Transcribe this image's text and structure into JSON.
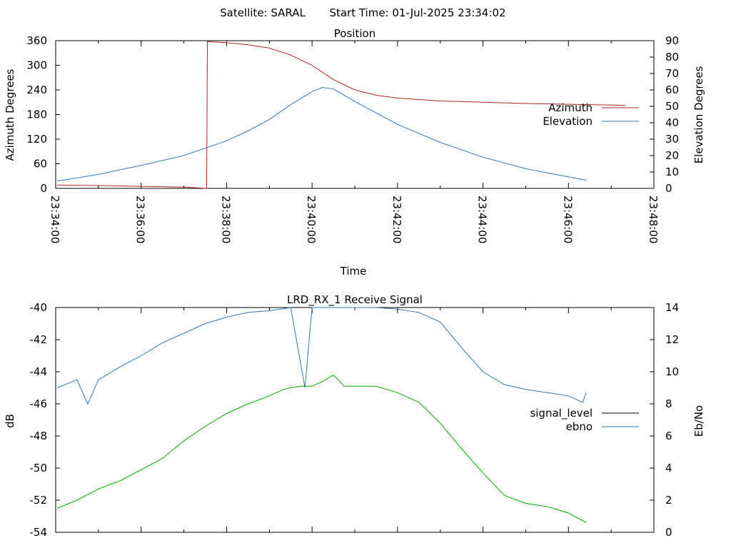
{
  "header": {
    "satellite": "Satellite: SARAL",
    "start_time": "Start Time: 01-Jul-2025 23:34:02"
  },
  "chart_data": [
    {
      "type": "line",
      "title": "Position",
      "xlabel": "Time",
      "ylabel": "Azimuth Degrees",
      "y2label": "Elevation Degrees",
      "xlim": [
        "23:34:00",
        "23:48:00"
      ],
      "ylim": [
        0,
        360
      ],
      "y2lim": [
        0,
        90
      ],
      "x_ticks": [
        "23:34:00",
        "23:36:00",
        "23:38:00",
        "23:40:00",
        "23:42:00",
        "23:44:00",
        "23:46:00",
        "23:48:00"
      ],
      "y_ticks": [
        0,
        60,
        120,
        180,
        240,
        300,
        360
      ],
      "y2_ticks": [
        0,
        10,
        20,
        30,
        40,
        50,
        60,
        70,
        80,
        90
      ],
      "legend_position": "right",
      "series": [
        {
          "name": "Azimuth",
          "axis": "left",
          "color": "#b22222",
          "x": [
            "23:34:02",
            "23:35:00",
            "23:36:00",
            "23:37:00",
            "23:37:32",
            "23:37:33",
            "23:38:00",
            "23:38:30",
            "23:39:00",
            "23:39:30",
            "23:40:00",
            "23:40:30",
            "23:41:00",
            "23:41:30",
            "23:42:00",
            "23:43:00",
            "23:44:00",
            "23:45:00",
            "23:46:00",
            "23:47:00",
            "23:47:20"
          ],
          "values": [
            8,
            7,
            5,
            3,
            0,
            358,
            355,
            350,
            342,
            325,
            300,
            265,
            240,
            227,
            220,
            213,
            210,
            207,
            205,
            203,
            202
          ]
        },
        {
          "name": "Elevation",
          "axis": "right",
          "color": "#3a75b0",
          "x": [
            "23:34:02",
            "23:35:00",
            "23:36:00",
            "23:37:00",
            "23:38:00",
            "23:38:30",
            "23:39:00",
            "23:39:30",
            "23:40:00",
            "23:40:15",
            "23:40:30",
            "23:41:00",
            "23:41:30",
            "23:42:00",
            "23:43:00",
            "23:44:00",
            "23:45:00",
            "23:46:00",
            "23:46:25"
          ],
          "values": [
            4.5,
            8.5,
            14,
            20,
            29,
            35,
            42,
            51,
            59,
            61.5,
            60.5,
            53,
            46,
            39,
            28,
            19,
            12,
            7,
            5
          ]
        }
      ]
    },
    {
      "type": "line",
      "title": "LRD_RX_1 Receive Signal",
      "ylabel": "dB",
      "y2label": "Eb/No",
      "xlim": [
        "23:34:00",
        "23:48:00"
      ],
      "ylim": [
        -54,
        -40
      ],
      "y2lim": [
        0,
        14
      ],
      "y_ticks": [
        -54,
        -52,
        -50,
        -48,
        -46,
        -44,
        -42,
        -40
      ],
      "y2_ticks": [
        0,
        2,
        4,
        6,
        8,
        10,
        12,
        14
      ],
      "legend_position": "right",
      "series": [
        {
          "name": "signal_level",
          "axis": "left",
          "color": "#000000",
          "x": [],
          "values": []
        },
        {
          "name": "ebno",
          "axis": "right",
          "color": "#3a75b0",
          "x": [
            "23:34:02",
            "23:34:30",
            "23:34:45",
            "23:35:00",
            "23:35:30",
            "23:36:00",
            "23:36:30",
            "23:37:00",
            "23:37:30",
            "23:38:00",
            "23:38:30",
            "23:39:00",
            "23:39:30",
            "23:39:50",
            "23:40:00",
            "23:40:30",
            "23:41:00",
            "23:41:30",
            "23:42:00",
            "23:42:30",
            "23:43:00",
            "23:43:30",
            "23:44:00",
            "23:44:30",
            "23:45:00",
            "23:45:30",
            "23:46:00",
            "23:46:20",
            "23:46:25"
          ],
          "values": [
            9,
            9.5,
            8,
            9.5,
            10.3,
            11,
            11.8,
            12.4,
            13,
            13.4,
            13.7,
            13.8,
            14,
            9,
            14,
            14,
            14,
            14,
            13.9,
            13.7,
            13.1,
            11.5,
            10,
            9.2,
            8.9,
            8.7,
            8.5,
            8.1,
            8.7
          ]
        },
        {
          "name": "",
          "axis": "right",
          "color": "#00aa00",
          "x": [
            "23:34:02",
            "23:34:30",
            "23:35:00",
            "23:35:30",
            "23:36:00",
            "23:36:30",
            "23:37:00",
            "23:37:30",
            "23:38:00",
            "23:38:30",
            "23:39:00",
            "23:39:20",
            "23:39:30",
            "23:39:45",
            "23:40:00",
            "23:40:15",
            "23:40:30",
            "23:40:45",
            "23:41:00",
            "23:41:30",
            "23:42:00",
            "23:42:30",
            "23:43:00",
            "23:43:30",
            "23:44:00",
            "23:44:30",
            "23:45:00",
            "23:45:30",
            "23:46:00",
            "23:46:25"
          ],
          "values": [
            1.5,
            2,
            2.7,
            3.2,
            3.9,
            4.6,
            5.7,
            6.6,
            7.4,
            8,
            8.5,
            8.9,
            9,
            9.1,
            9.1,
            9.4,
            9.8,
            9.1,
            9.1,
            9.1,
            8.7,
            8.1,
            6.8,
            5.2,
            3.7,
            2.3,
            1.8,
            1.6,
            1.2,
            0.6
          ]
        }
      ]
    }
  ]
}
